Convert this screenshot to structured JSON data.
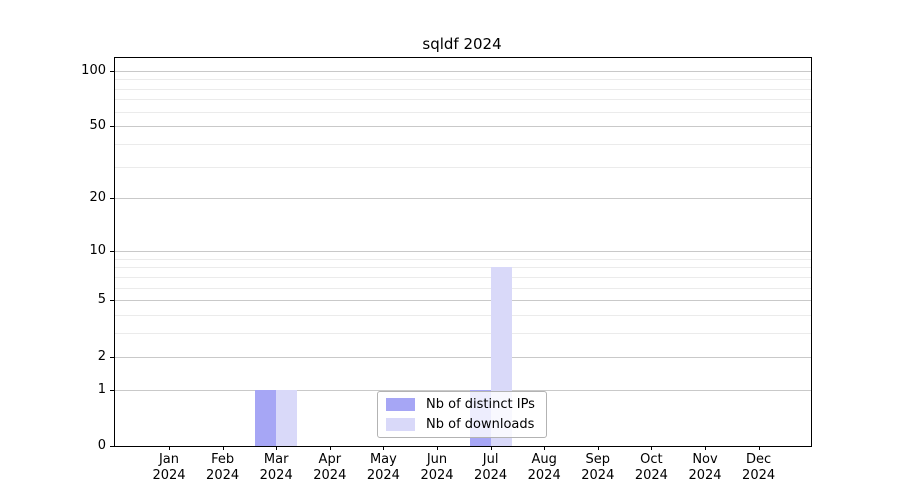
{
  "chart_data": {
    "type": "bar",
    "title": "sqldf 2024",
    "x_year": "2024",
    "x_categories": [
      "Jan",
      "Feb",
      "Mar",
      "Apr",
      "May",
      "Jun",
      "Jul",
      "Aug",
      "Sep",
      "Oct",
      "Nov",
      "Dec"
    ],
    "series": [
      {
        "name": "Nb of distinct IPs",
        "color": "#a6a6f5",
        "values": [
          0,
          0,
          1,
          0,
          0,
          0,
          1,
          0,
          0,
          0,
          0,
          0
        ]
      },
      {
        "name": "Nb of downloads",
        "color": "#d9d9f9",
        "values": [
          0,
          0,
          1,
          0,
          0,
          0,
          8,
          0,
          0,
          0,
          0,
          0
        ]
      }
    ],
    "y_scale": "log1p",
    "y_major_ticks": [
      0,
      1,
      2,
      5,
      10,
      20,
      50,
      100
    ],
    "y_minor_ticks": [
      3,
      4,
      6,
      7,
      8,
      9,
      30,
      40,
      60,
      70,
      80,
      90
    ],
    "ylim": [
      0,
      117
    ],
    "grid": "horizontal",
    "legend_position": "lower center",
    "colors": {
      "axis": "#000000",
      "grid_major": "#c9c9c9",
      "grid_minor": "#ebebeb",
      "legend_border": "#b3b3b3"
    }
  }
}
